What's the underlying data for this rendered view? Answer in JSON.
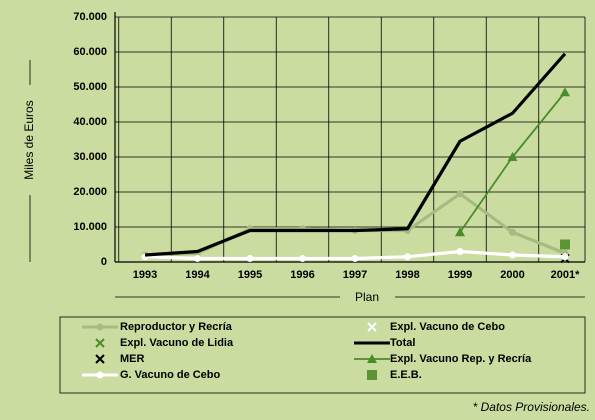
{
  "chart_data": {
    "type": "line",
    "x_label": "Plan",
    "y_label": "Miles de Euros",
    "footnote": "* Datos Provisionales.",
    "categories": [
      "1993",
      "1994",
      "1995",
      "1996",
      "1997",
      "1998",
      "1999",
      "2000",
      "2001*"
    ],
    "ylim": [
      0,
      70000
    ],
    "yticks": [
      0,
      {
        "value": 10000,
        "label": "10.000"
      },
      {
        "value": 20000,
        "label": "20.000"
      },
      {
        "value": 30000,
        "label": "30.000"
      },
      {
        "value": 40000,
        "label": "40.000"
      },
      {
        "value": 50000,
        "label": "50.000"
      },
      {
        "value": 60000,
        "label": "60.000"
      },
      {
        "value": 70000,
        "label": "70.000"
      }
    ],
    "grid": true,
    "series": [
      {
        "name": "Reproductor y Recría",
        "color": "#a6ba83",
        "line": true,
        "marker": "circle",
        "values": [
          2000,
          2500,
          9500,
          9500,
          9000,
          9000,
          19500,
          8500,
          2500
        ]
      },
      {
        "name": "Expl. Vacuno de Lidia",
        "color": "#4a8c2a",
        "line": false,
        "marker": "x",
        "values": [
          null,
          null,
          null,
          null,
          null,
          null,
          null,
          null,
          null
        ]
      },
      {
        "name": "MER",
        "color": "#000000",
        "line": false,
        "marker": "x",
        "values": [
          null,
          null,
          null,
          null,
          null,
          null,
          null,
          null,
          1000
        ]
      },
      {
        "name": "G. Vacuno de Cebo",
        "color": "#ffffff",
        "line": true,
        "marker": "circle",
        "values": [
          1500,
          1000,
          1000,
          1000,
          1000,
          1500,
          3000,
          2000,
          1500
        ]
      },
      {
        "name": "Expl. Vacuno de Cebo",
        "color": "#ffffff",
        "line": false,
        "marker": "x",
        "values": [
          null,
          null,
          null,
          null,
          null,
          null,
          null,
          null,
          null
        ]
      },
      {
        "name": "Total",
        "color": "#000000",
        "line": true,
        "marker": "none",
        "values": [
          2000,
          3000,
          9000,
          9000,
          9000,
          9500,
          34500,
          42500,
          59500
        ]
      },
      {
        "name": "Expl. Vacuno Rep. y Recría",
        "color": "#4a8c2a",
        "line": true,
        "marker": "triangle",
        "values": [
          null,
          null,
          null,
          null,
          null,
          null,
          8500,
          30000,
          48500
        ]
      },
      {
        "name": "E.E.B.",
        "color": "#5c9434",
        "line": false,
        "marker": "square",
        "values": [
          null,
          null,
          null,
          null,
          null,
          null,
          null,
          null,
          5000
        ]
      }
    ]
  }
}
